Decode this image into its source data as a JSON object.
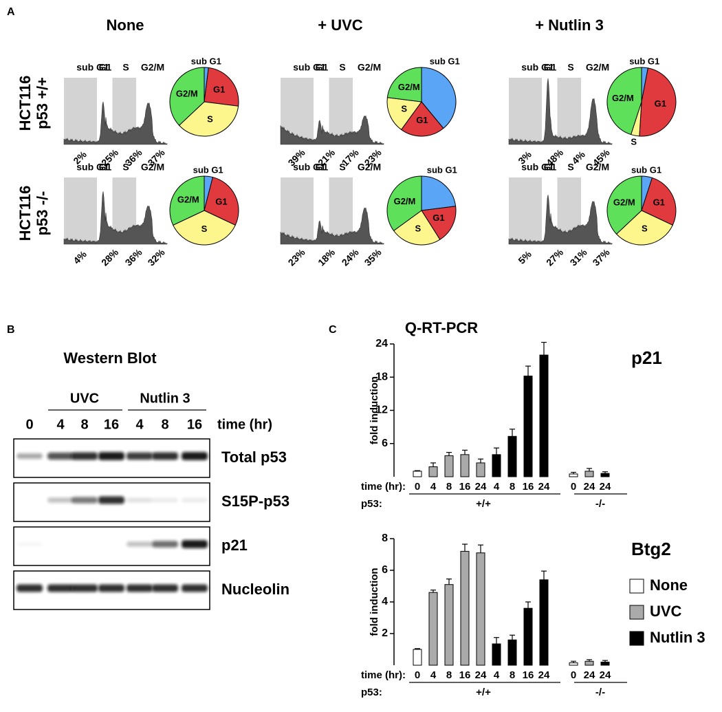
{
  "panel_a": {
    "label": "A",
    "columns": [
      "None",
      "+ UVC",
      "+ Nutlin 3"
    ],
    "rows": [
      [
        "HCT116",
        "p53 +/+"
      ],
      [
        "HCT116",
        "p53 -/-"
      ]
    ]
  },
  "panel_b": {
    "label": "B",
    "title": "Western Blot",
    "groups": [
      "UVC",
      "Nutlin 3"
    ],
    "lanes": [
      "0",
      "4",
      "8",
      "16",
      "4",
      "8",
      "16"
    ],
    "time_label": "time (hr)",
    "rows": [
      "Total p53",
      "S15P-p53",
      "p21",
      "Nucleolin"
    ]
  },
  "panel_c": {
    "label": "C",
    "title": "Q-RT-PCR"
  },
  "chart_data": [
    {
      "type": "pie",
      "categories": [
        "sub G1",
        "G1",
        "S",
        "G2/M"
      ],
      "values": [
        2,
        25,
        36,
        37
      ],
      "value_labels": [
        "2%",
        "25%",
        "36%",
        "37%"
      ],
      "colors": [
        "#5aa5f5",
        "#e0393e",
        "#fdf68c",
        "#5ee05a"
      ]
    },
    {
      "type": "pie",
      "categories": [
        "sub G1",
        "G1",
        "S",
        "G2/M"
      ],
      "values": [
        39,
        21,
        17,
        23
      ],
      "value_labels": [
        "39%",
        "21%",
        "17%",
        "23%"
      ],
      "colors": [
        "#5aa5f5",
        "#e0393e",
        "#fdf68c",
        "#5ee05a"
      ]
    },
    {
      "type": "pie",
      "categories": [
        "sub G1",
        "G1",
        "S",
        "G2/M"
      ],
      "values": [
        3,
        48,
        4,
        45
      ],
      "value_labels": [
        "3%",
        "48%",
        "4%",
        "45%"
      ],
      "colors": [
        "#5aa5f5",
        "#e0393e",
        "#fdf68c",
        "#5ee05a"
      ]
    },
    {
      "type": "pie",
      "categories": [
        "sub G1",
        "G1",
        "S",
        "G2/M"
      ],
      "values": [
        4,
        28,
        36,
        32
      ],
      "value_labels": [
        "4%",
        "28%",
        "36%",
        "32%"
      ],
      "colors": [
        "#5aa5f5",
        "#e0393e",
        "#fdf68c",
        "#5ee05a"
      ]
    },
    {
      "type": "pie",
      "categories": [
        "sub G1",
        "G1",
        "S",
        "G2/M"
      ],
      "values": [
        23,
        18,
        24,
        35
      ],
      "value_labels": [
        "23%",
        "18%",
        "24%",
        "35%"
      ],
      "colors": [
        "#5aa5f5",
        "#e0393e",
        "#fdf68c",
        "#5ee05a"
      ]
    },
    {
      "type": "pie",
      "categories": [
        "sub G1",
        "G1",
        "S",
        "G2/M"
      ],
      "values": [
        5,
        27,
        31,
        37
      ],
      "value_labels": [
        "5%",
        "27%",
        "31%",
        "37%"
      ],
      "colors": [
        "#5aa5f5",
        "#e0393e",
        "#fdf68c",
        "#5ee05a"
      ]
    },
    {
      "type": "bar",
      "title": "p21",
      "y_label": "fold induction",
      "x_label": "time (hr):",
      "group_label": "p53:",
      "groups": [
        "+/+",
        "-/-"
      ],
      "categories": [
        "0",
        "4",
        "8",
        "16",
        "24",
        "4",
        "8",
        "16",
        "24",
        "0",
        "24",
        "24"
      ],
      "ylim": [
        0,
        24
      ],
      "yticks": [
        6,
        12,
        18,
        24
      ],
      "series": [
        {
          "color": "#ffffff",
          "values": [
            1.0,
            null,
            null,
            null,
            null,
            null,
            null,
            null,
            null,
            0.5,
            null,
            null
          ],
          "errors": [
            0.1,
            null,
            null,
            null,
            null,
            null,
            null,
            null,
            null,
            0.3,
            null,
            null
          ]
        },
        {
          "color": "#aaaaaa",
          "values": [
            null,
            1.8,
            3.8,
            4.0,
            2.5,
            null,
            null,
            null,
            null,
            null,
            1.0,
            null
          ],
          "errors": [
            null,
            0.7,
            0.6,
            0.8,
            0.7,
            null,
            null,
            null,
            null,
            null,
            0.5,
            null
          ]
        },
        {
          "color": "#000000",
          "values": [
            null,
            null,
            null,
            null,
            null,
            4.0,
            7.3,
            18.2,
            22.0,
            null,
            null,
            0.6
          ],
          "errors": [
            null,
            null,
            null,
            null,
            null,
            1.2,
            1.3,
            1.8,
            2.3,
            null,
            null,
            0.3
          ]
        }
      ]
    },
    {
      "type": "bar",
      "title": "Btg2",
      "y_label": "fold induction",
      "x_label": "time (hr):",
      "group_label": "p53:",
      "groups": [
        "+/+",
        "-/-"
      ],
      "categories": [
        "0",
        "4",
        "8",
        "16",
        "24",
        "4",
        "8",
        "16",
        "24",
        "0",
        "24",
        "24"
      ],
      "ylim": [
        0,
        8
      ],
      "yticks": [
        2,
        4,
        6,
        8
      ],
      "series": [
        {
          "name": "None",
          "color": "#ffffff",
          "values": [
            1.0,
            null,
            null,
            null,
            null,
            null,
            null,
            null,
            null,
            0.15,
            null,
            null
          ],
          "errors": [
            0.05,
            null,
            null,
            null,
            null,
            null,
            null,
            null,
            null,
            0.1,
            null,
            null
          ]
        },
        {
          "name": "UVC",
          "color": "#aaaaaa",
          "values": [
            null,
            4.6,
            5.1,
            7.2,
            7.1,
            null,
            null,
            null,
            null,
            null,
            0.25,
            null
          ],
          "errors": [
            null,
            0.15,
            0.35,
            0.45,
            0.5,
            null,
            null,
            null,
            null,
            null,
            0.1,
            null
          ]
        },
        {
          "name": "Nutlin 3",
          "color": "#000000",
          "values": [
            null,
            null,
            null,
            null,
            null,
            1.35,
            1.6,
            3.6,
            5.4,
            null,
            null,
            0.2
          ],
          "errors": [
            null,
            null,
            null,
            null,
            null,
            0.4,
            0.3,
            0.4,
            0.55,
            null,
            null,
            0.1
          ]
        }
      ]
    }
  ]
}
